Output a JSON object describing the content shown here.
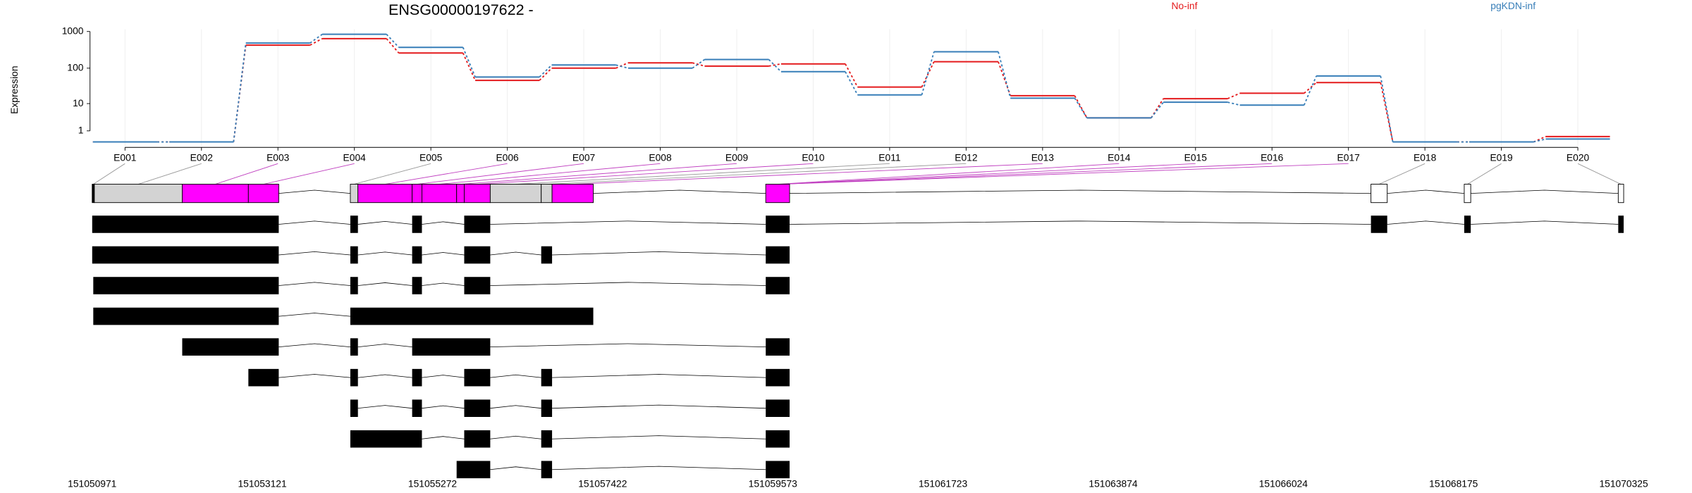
{
  "chart_data": {
    "type": "line",
    "title": "ENSG00000197622 -",
    "ylabel": "Expression",
    "yscale": "log1p",
    "categories": [
      "E001",
      "E002",
      "E003",
      "E004",
      "E005",
      "E006",
      "E007",
      "E008",
      "E009",
      "E010",
      "E011",
      "E012",
      "E013",
      "E014",
      "E015",
      "E016",
      "E017",
      "E018",
      "E019",
      "E020"
    ],
    "series": [
      {
        "name": "No-inf",
        "color": "#e41a1c",
        "values": [
          0,
          0,
          425,
          640,
          260,
          46,
          100,
          140,
          114,
          131,
          30,
          150,
          17,
          3.5,
          14,
          20,
          40,
          0,
          0,
          0.4
        ]
      },
      {
        "name": "pgKDN-inf",
        "color": "#377eb8",
        "values": [
          0,
          0,
          485,
          840,
          370,
          57,
          122,
          100,
          172,
          80,
          18,
          280,
          14.5,
          3.5,
          11,
          9,
          61,
          0,
          0,
          0.2
        ]
      }
    ],
    "ylim": [
      0,
      1150
    ],
    "yticks": [
      1,
      10,
      100,
      1000
    ],
    "grid": true
  },
  "gene_model": {
    "xlim": [
      151050971,
      151070325
    ],
    "coordinates": [
      151050971,
      151053121,
      151055272,
      151057422,
      151059573,
      151061723,
      151063874,
      151066024,
      151068175,
      151070325
    ]
  }
}
